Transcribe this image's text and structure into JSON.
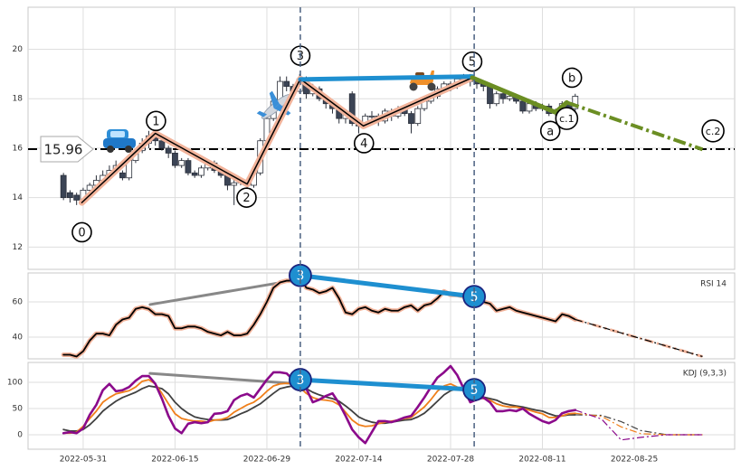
{
  "chart_data": [
    {
      "type": "candlestick",
      "x": [
        0,
        1,
        2,
        3,
        4,
        5,
        6,
        7,
        8,
        9,
        10,
        11,
        12,
        13,
        14,
        15,
        16,
        17,
        18,
        19,
        20,
        21,
        22,
        23,
        24,
        25,
        26,
        27,
        28,
        29,
        30,
        31,
        32,
        33,
        34,
        35,
        36,
        37,
        38,
        39,
        40,
        41,
        42,
        43,
        44,
        45,
        46,
        47,
        48,
        49,
        50,
        51,
        52,
        53,
        54,
        55,
        56,
        57,
        58,
        59,
        60,
        61,
        62,
        63,
        64,
        65,
        66,
        67,
        68,
        69,
        70,
        71,
        72,
        73,
        74,
        75,
        76,
        77,
        78
      ],
      "open": [
        14.9,
        14.2,
        14.1,
        13.9,
        14.3,
        14.5,
        14.7,
        14.9,
        15.1,
        15.0,
        14.8,
        15.5,
        15.9,
        16.2,
        16.5,
        16.3,
        16.0,
        15.8,
        15.3,
        15.5,
        15.0,
        14.9,
        15.2,
        15.4,
        15.1,
        14.9,
        14.5,
        14.6,
        14.7,
        14.5,
        15.0,
        16.3,
        17.2,
        17.9,
        18.7,
        18.5,
        18.3,
        18.8,
        18.2,
        18.4,
        18.0,
        17.8,
        17.6,
        17.2,
        18.2,
        17.0,
        16.9,
        17.3,
        17.3,
        17.1,
        17.5,
        17.3,
        17.6,
        17.4,
        17.0,
        17.6,
        17.9,
        18.1,
        18.4,
        18.6,
        18.5,
        18.8,
        18.9,
        18.7,
        18.6,
        18.5,
        17.8,
        18.2,
        18.0,
        18.1,
        17.9,
        17.5,
        17.8,
        17.6,
        17.7,
        17.4,
        17.5,
        17.8,
        17.6
      ],
      "high": [
        15.0,
        14.3,
        14.2,
        14.4,
        14.6,
        14.9,
        15.1,
        15.3,
        15.5,
        15.1,
        15.6,
        16.0,
        16.4,
        16.7,
        16.7,
        16.4,
        16.1,
        15.9,
        15.6,
        15.6,
        15.1,
        15.3,
        15.5,
        15.5,
        15.2,
        15.0,
        14.8,
        14.8,
        14.8,
        15.1,
        16.4,
        17.3,
        18.0,
        18.9,
        18.9,
        18.6,
        19.0,
        18.9,
        18.6,
        18.5,
        18.1,
        17.9,
        17.7,
        17.5,
        18.3,
        17.1,
        17.4,
        17.5,
        17.4,
        17.6,
        17.6,
        17.7,
        17.7,
        17.5,
        17.7,
        18.0,
        18.2,
        18.5,
        18.7,
        18.7,
        18.9,
        19.0,
        19.0,
        18.8,
        18.7,
        18.6,
        18.3,
        18.4,
        18.2,
        18.2,
        18.0,
        17.9,
        17.9,
        17.8,
        17.8,
        17.6,
        17.9,
        17.9,
        18.2
      ],
      "low": [
        13.9,
        13.8,
        13.7,
        13.8,
        14.1,
        14.4,
        14.6,
        14.8,
        15.0,
        14.7,
        14.7,
        15.4,
        15.8,
        16.0,
        16.1,
        15.9,
        15.6,
        15.2,
        15.2,
        14.9,
        14.8,
        14.8,
        15.1,
        15.0,
        14.8,
        14.3,
        13.7,
        14.5,
        14.4,
        14.4,
        14.9,
        16.2,
        17.1,
        17.8,
        18.3,
        18.0,
        18.2,
        18.0,
        18.1,
        17.9,
        17.6,
        17.4,
        17.0,
        17.0,
        16.9,
        16.6,
        16.8,
        17.1,
        16.9,
        17.0,
        17.1,
        17.2,
        17.3,
        16.6,
        16.9,
        17.5,
        17.8,
        18.0,
        18.3,
        18.3,
        18.4,
        18.7,
        18.5,
        18.4,
        18.3,
        17.6,
        17.7,
        17.8,
        17.9,
        17.8,
        17.4,
        17.4,
        17.5,
        17.5,
        17.3,
        17.3,
        17.4,
        17.5,
        17.5
      ],
      "close": [
        14.0,
        14.0,
        13.9,
        14.3,
        14.5,
        14.7,
        14.9,
        15.1,
        15.3,
        14.8,
        15.5,
        15.9,
        16.2,
        16.5,
        16.3,
        16.0,
        15.8,
        15.3,
        15.5,
        15.0,
        14.9,
        15.2,
        15.4,
        15.1,
        14.9,
        14.5,
        14.6,
        14.7,
        14.5,
        15.0,
        16.3,
        17.2,
        17.9,
        18.7,
        18.5,
        18.3,
        18.8,
        18.2,
        18.4,
        18.0,
        17.8,
        17.6,
        17.2,
        17.4,
        17.0,
        16.9,
        17.3,
        17.3,
        17.1,
        17.5,
        17.3,
        17.6,
        17.4,
        17.0,
        17.6,
        17.9,
        18.1,
        18.4,
        18.6,
        18.5,
        18.8,
        18.9,
        18.7,
        18.6,
        18.5,
        17.8,
        18.2,
        18.0,
        18.1,
        17.9,
        17.5,
        17.8,
        17.6,
        17.7,
        17.4,
        17.5,
        17.8,
        17.6,
        18.1
      ],
      "up_color": "#ffffff",
      "down_color": "#3b4455",
      "xlim": [
        -5.4,
        102.3
      ],
      "ylim": [
        11.1,
        21.7
      ],
      "yticks": [
        12,
        14,
        16,
        18,
        20
      ],
      "grid": true,
      "wave": {
        "x": [
          2.8,
          14,
          28,
          36.1,
          45.7,
          62.3
        ],
        "values": [
          13.8,
          16.6,
          14.55,
          18.8,
          16.9,
          18.85
        ],
        "color": "#f2b39a"
      },
      "channel": {
        "x": [
          36.1,
          62.3
        ],
        "values": [
          18.78,
          18.9
        ],
        "color": "#1e8fd0"
      },
      "correction": {
        "x": [
          62.3,
          75,
          76.7
        ],
        "values": [
          18.85,
          17.45,
          17.85
        ],
        "color": "#6b8e23"
      },
      "correction_projection": {
        "x": [
          76.7,
          97.4
        ],
        "values": [
          17.85,
          15.95
        ]
      },
      "level": 15.96,
      "vlines": [
        36.1,
        62.6
      ],
      "annotations": [
        {
          "text": "0",
          "x": 2.8,
          "y": 12.6
        },
        {
          "text": "1",
          "x": 14.1,
          "y": 17.1
        },
        {
          "text": "2",
          "x": 27.9,
          "y": 14.0
        },
        {
          "text": "3",
          "x": 36.1,
          "y": 19.74
        },
        {
          "text": "4",
          "x": 45.8,
          "y": 16.2
        },
        {
          "text": "5",
          "x": 62.3,
          "y": 19.5
        },
        {
          "text": "a",
          "x": 74.2,
          "y": 16.7
        },
        {
          "text": "c.1",
          "x": 76.7,
          "y": 17.2
        },
        {
          "text": "b",
          "x": 77.5,
          "y": 18.85
        },
        {
          "text": "c.2",
          "x": 99.0,
          "y": 16.7
        }
      ]
    },
    {
      "type": "line",
      "label": "RSI 14",
      "x": [
        0,
        1,
        2,
        3,
        4,
        5,
        6,
        7,
        8,
        9,
        10,
        11,
        12,
        13,
        14,
        15,
        16,
        17,
        18,
        19,
        20,
        21,
        22,
        23,
        24,
        25,
        26,
        27,
        28,
        29,
        30,
        31,
        32,
        33,
        34,
        35,
        36,
        37,
        38,
        39,
        40,
        41,
        42,
        43,
        44,
        45,
        46,
        47,
        48,
        49,
        50,
        51,
        52,
        53,
        54,
        55,
        56,
        57,
        58,
        59,
        60,
        61,
        62,
        63,
        64,
        65,
        66,
        67,
        68,
        69,
        70,
        71,
        72,
        73,
        74,
        75,
        76,
        77,
        78
      ],
      "series": [
        {
          "color": "#000000",
          "halo_color": "#f2b39a",
          "values": [
            30,
            30,
            29,
            32,
            38,
            42,
            42,
            41,
            47,
            50,
            51,
            56,
            57,
            56,
            53,
            53,
            52,
            45,
            45,
            46,
            46,
            45,
            43,
            42,
            41,
            43,
            41,
            41,
            42,
            47,
            53,
            60,
            68,
            71,
            72,
            72,
            75,
            68,
            67,
            65,
            66,
            68,
            62,
            54,
            53,
            56,
            57,
            55,
            54,
            56,
            55,
            55,
            57,
            58,
            55,
            58,
            59,
            62,
            66,
            64,
            64,
            63,
            63,
            61,
            60,
            59,
            55,
            56,
            57,
            55,
            54,
            53,
            52,
            51,
            50,
            49,
            53,
            52,
            50
          ]
        }
      ],
      "projection": {
        "x": [
          78,
          97.4
        ],
        "series": [
          {
            "color": "#000000",
            "values": [
              50,
              29
            ]
          }
        ]
      },
      "trend": {
        "x": [
          13.2,
          34.8
        ],
        "values": [
          58.5,
          72
        ],
        "color": "#888888"
      },
      "pivots": {
        "labels": [
          "3",
          "5"
        ],
        "x": [
          36.1,
          62.6
        ],
        "values": [
          75,
          63
        ],
        "color": "#1e8fd0"
      },
      "xlim": [
        -5.4,
        102.3
      ],
      "ylim": [
        27.7,
        76.4
      ],
      "yticks": [
        40,
        60
      ],
      "grid": true
    },
    {
      "type": "line",
      "label": "KDJ (9,3,3)",
      "x": [
        0,
        1,
        2,
        3,
        4,
        5,
        6,
        7,
        8,
        9,
        10,
        11,
        12,
        13,
        14,
        15,
        16,
        17,
        18,
        19,
        20,
        21,
        22,
        23,
        24,
        25,
        26,
        27,
        28,
        29,
        30,
        31,
        32,
        33,
        34,
        35,
        36,
        37,
        38,
        39,
        40,
        41,
        42,
        43,
        44,
        45,
        46,
        47,
        48,
        49,
        50,
        51,
        52,
        53,
        54,
        55,
        56,
        57,
        58,
        59,
        60,
        61,
        62,
        63,
        64,
        65,
        66,
        67,
        68,
        69,
        70,
        71,
        72,
        73,
        74,
        75,
        76,
        77,
        78
      ],
      "series": [
        {
          "color": "#404040",
          "values": [
            10,
            7,
            7,
            10,
            19,
            31,
            45,
            55,
            64,
            71,
            76,
            81,
            88,
            93,
            91,
            88,
            78,
            62,
            50,
            41,
            34,
            31,
            29,
            28,
            28,
            29,
            34,
            40,
            45,
            52,
            59,
            69,
            79,
            88,
            91,
            93,
            93,
            88,
            81,
            76,
            72,
            69,
            64,
            55,
            45,
            34,
            28,
            24,
            22,
            22,
            24,
            26,
            28,
            29,
            34,
            41,
            52,
            64,
            76,
            84,
            88,
            86,
            81,
            76,
            72,
            69,
            66,
            60,
            57,
            55,
            53,
            50,
            47,
            45,
            40,
            36,
            36,
            38,
            38
          ]
        },
        {
          "color": "#f07f1a",
          "values": [
            3,
            3,
            5,
            16,
            31,
            45,
            62,
            71,
            78,
            81,
            84,
            91,
            102,
            105,
            97,
            79,
            59,
            40,
            31,
            28,
            26,
            26,
            24,
            28,
            29,
            33,
            43,
            50,
            57,
            62,
            71,
            83,
            93,
            97,
            98,
            97,
            91,
            79,
            71,
            67,
            66,
            64,
            57,
            43,
            28,
            19,
            16,
            17,
            21,
            24,
            26,
            28,
            31,
            33,
            43,
            53,
            67,
            83,
            93,
            97,
            91,
            83,
            74,
            71,
            69,
            66,
            59,
            55,
            53,
            53,
            50,
            47,
            43,
            40,
            33,
            33,
            36,
            40,
            41
          ]
        },
        {
          "color": "#8b0a8b",
          "values": [
            3,
            5,
            3,
            12,
            38,
            57,
            85,
            97,
            83,
            85,
            91,
            103,
            112,
            112,
            97,
            69,
            36,
            12,
            3,
            21,
            24,
            22,
            24,
            40,
            41,
            45,
            66,
            74,
            78,
            71,
            88,
            105,
            119,
            119,
            117,
            105,
            105,
            88,
            62,
            67,
            74,
            79,
            60,
            36,
            10,
            -5,
            -16,
            5,
            26,
            26,
            24,
            28,
            33,
            36,
            53,
            71,
            91,
            109,
            119,
            131,
            114,
            88,
            62,
            67,
            71,
            62,
            45,
            45,
            47,
            45,
            50,
            40,
            33,
            26,
            22,
            28,
            41,
            45,
            47
          ]
        }
      ],
      "projection": {
        "x": [
          78,
          82,
          85,
          88,
          92,
          97.4
        ],
        "series": [
          {
            "color": "#404040",
            "values": [
              38,
              37,
              25,
              8,
              0,
              0
            ]
          },
          {
            "color": "#f07f1a",
            "values": [
              41,
              35,
              15,
              2,
              0,
              0
            ]
          },
          {
            "color": "#8b0a8b",
            "values": [
              47,
              30,
              -10,
              -5,
              0,
              0
            ]
          }
        ]
      },
      "trend": {
        "x": [
          13.2,
          34.8
        ],
        "values": [
          117,
          98
        ],
        "color": "#888888"
      },
      "pivots": {
        "labels": [
          "3",
          "5"
        ],
        "x": [
          36.1,
          62.6
        ],
        "values": [
          105,
          86
        ],
        "color": "#1e8fd0"
      },
      "xlim": [
        -5.4,
        102.3
      ],
      "ylim": [
        -27.6,
        137.9
      ],
      "yticks": [
        0,
        50,
        100
      ],
      "grid": true,
      "xticks": [
        {
          "value": 3,
          "label": "2022-05-31"
        },
        {
          "value": 17,
          "label": "2022-06-15"
        },
        {
          "value": 31,
          "label": "2022-06-29"
        },
        {
          "value": 45,
          "label": "2022-07-14"
        },
        {
          "value": 59,
          "label": "2022-07-28"
        },
        {
          "value": 73,
          "label": "2022-08-11"
        },
        {
          "value": 87,
          "label": "2022-08-25"
        }
      ]
    }
  ]
}
